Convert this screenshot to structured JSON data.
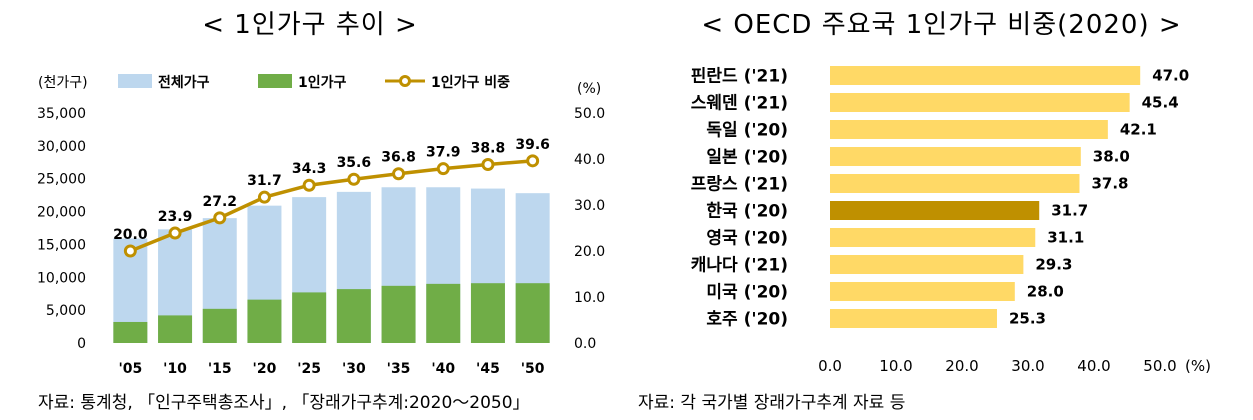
{
  "left": {
    "title": "< 1인가구 추이 >",
    "source": "자료: 통계청, 「인구주택총조사」, 「장래가구추계:2020～2050」"
  },
  "right": {
    "title": "< OECD 주요국 1인가구 비중(2020) >",
    "source": "자료: 각 국가별 장래가구추계 자료 등"
  },
  "colors": {
    "total_bar": "#bdd7ee",
    "single_bar": "#70ad47",
    "ratio_line": "#bf9000",
    "hbar": "#ffd966",
    "hbar_highlight": "#bf9000"
  },
  "chart_data": [
    {
      "type": "bar",
      "combo": "bar+line",
      "categories": [
        "'05",
        "'10",
        "'15",
        "'20",
        "'25",
        "'30",
        "'35",
        "'40",
        "'45",
        "'50"
      ],
      "series": [
        {
          "name": "전체가구",
          "type": "bar",
          "axis": "left",
          "values": [
            15900,
            17300,
            19000,
            20900,
            22200,
            23000,
            23700,
            23700,
            23500,
            22800
          ]
        },
        {
          "name": "1인가구",
          "type": "bar",
          "axis": "left",
          "values": [
            3200,
            4200,
            5200,
            6600,
            7700,
            8200,
            8700,
            9000,
            9100,
            9100
          ]
        },
        {
          "name": "1인가구 비중",
          "type": "line",
          "axis": "right",
          "values": [
            20.0,
            23.9,
            27.2,
            31.7,
            34.3,
            35.6,
            36.8,
            37.9,
            38.8,
            39.6
          ],
          "labels": [
            "20.0",
            "23.9",
            "27.2",
            "31.7",
            "34.3",
            "35.6",
            "36.8",
            "37.9",
            "38.8",
            "39.6"
          ]
        }
      ],
      "y_left": {
        "unit": "(천가구)",
        "range": [
          0,
          35000
        ],
        "ticks": [
          "0",
          "5,000",
          "10,000",
          "15,000",
          "20,000",
          "25,000",
          "30,000",
          "35,000"
        ]
      },
      "y_right": {
        "unit": "(%)",
        "range": [
          0,
          50
        ],
        "ticks": [
          "0.0",
          "10.0",
          "20.0",
          "30.0",
          "40.0",
          "50.0"
        ]
      },
      "grid": false,
      "legend": "top"
    },
    {
      "type": "bar",
      "orientation": "horizontal",
      "categories": [
        "핀란드 ('21)",
        "스웨덴 ('21)",
        "독일 ('20)",
        "일본 ('20)",
        "프랑스 ('21)",
        "한국 ('20)",
        "영국 ('20)",
        "캐나다 ('21)",
        "미국 ('20)",
        "호주 ('20)"
      ],
      "values": [
        47.0,
        45.4,
        42.1,
        38.0,
        37.8,
        31.7,
        31.1,
        29.3,
        28.0,
        25.3
      ],
      "labels": [
        "47.0",
        "45.4",
        "42.1",
        "38.0",
        "37.8",
        "31.7",
        "31.1",
        "29.3",
        "28.0",
        "25.3"
      ],
      "highlight": "한국 ('20)",
      "x_axis": {
        "unit": "(%)",
        "range": [
          0,
          50
        ],
        "ticks": [
          "0.0",
          "10.0",
          "20.0",
          "30.0",
          "40.0",
          "50.0"
        ]
      },
      "grid": false
    }
  ]
}
